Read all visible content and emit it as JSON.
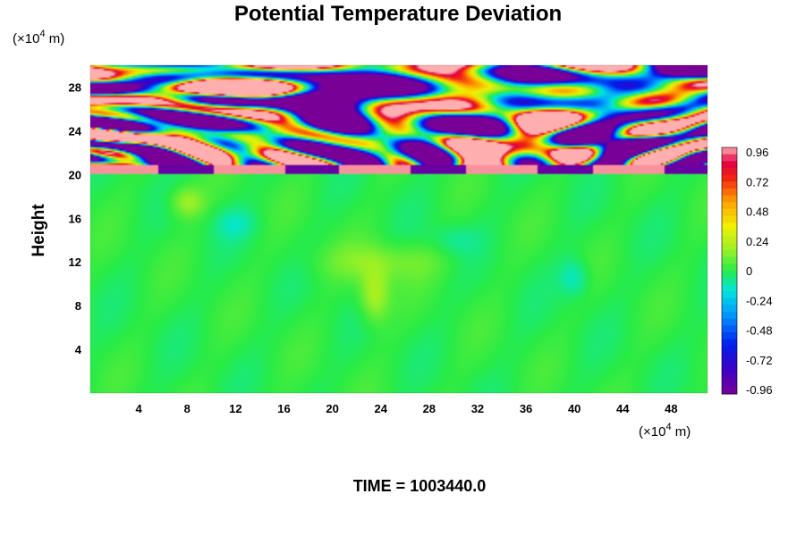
{
  "chart_data": {
    "type": "heatmap",
    "title": "Potential Temperature Deviation",
    "ylabel": "Height",
    "xlabel": "",
    "x_unit_prefix": "(×10",
    "x_unit_exp": "4",
    "x_unit_suffix": " m)",
    "y_unit_prefix": "(×10",
    "y_unit_exp": "4",
    "y_unit_suffix": " m)",
    "x_ticks": [
      4,
      8,
      12,
      16,
      20,
      24,
      28,
      32,
      36,
      40,
      44,
      48
    ],
    "y_ticks": [
      4,
      8,
      12,
      16,
      20,
      24,
      28
    ],
    "xlim": [
      0,
      51
    ],
    "ylim": [
      0,
      30
    ],
    "colorbar": {
      "ticks": [
        "0.96",
        "0.72",
        "0.48",
        "0.24",
        "0",
        "-0.24",
        "-0.48",
        "-0.72",
        "-0.96"
      ],
      "range": [
        -1.0,
        1.0
      ]
    },
    "footer": "TIME = 1003440.0",
    "description_fields": {
      "lower_layer_value_approx": 0.0,
      "tropopause_height": 20
    }
  }
}
